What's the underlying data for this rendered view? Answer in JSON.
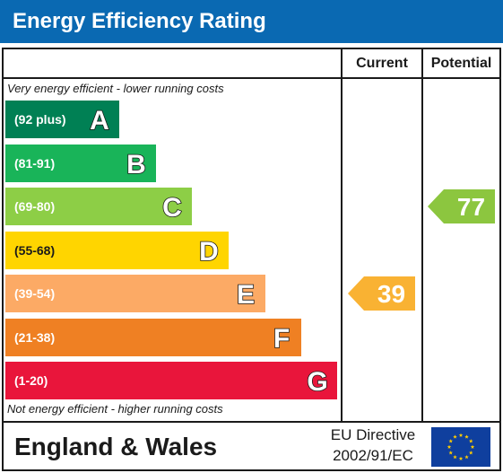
{
  "title": "Energy Efficiency Rating",
  "columns": {
    "current": "Current",
    "potential": "Potential"
  },
  "notes": {
    "top": "Very energy efficient - lower running costs",
    "bottom": "Not energy efficient - higher running costs"
  },
  "bands": [
    {
      "range": "(92 plus)",
      "letter": "A",
      "color": "#008054"
    },
    {
      "range": "(81-91)",
      "letter": "B",
      "color": "#19b459"
    },
    {
      "range": "(69-80)",
      "letter": "C",
      "color": "#8dce46"
    },
    {
      "range": "(55-68)",
      "letter": "D",
      "color": "#ffd500"
    },
    {
      "range": "(39-54)",
      "letter": "E",
      "color": "#fcaa65"
    },
    {
      "range": "(21-38)",
      "letter": "F",
      "color": "#ef8023"
    },
    {
      "range": "(1-20)",
      "letter": "G",
      "color": "#e9153b"
    }
  ],
  "current": {
    "value": "39",
    "band": "E",
    "color": "#f9b233"
  },
  "potential": {
    "value": "77",
    "band": "C",
    "color": "#8cc63f"
  },
  "footer": {
    "region": "England & Wales",
    "directive_line1": "EU Directive",
    "directive_line2": "2002/91/EC"
  },
  "flag_icon": "eu-flag-icon",
  "chart_data": {
    "type": "bar",
    "title": "Energy Efficiency Rating",
    "categories": [
      "A",
      "B",
      "C",
      "D",
      "E",
      "F",
      "G"
    ],
    "ranges": [
      "(92 plus)",
      "(81-91)",
      "(69-80)",
      "(55-68)",
      "(39-54)",
      "(21-38)",
      "(1-20)"
    ],
    "current": 39,
    "potential": 77
  }
}
